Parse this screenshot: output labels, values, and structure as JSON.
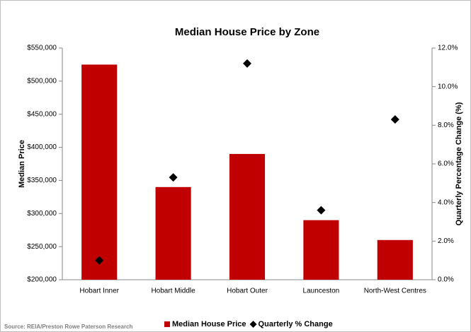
{
  "chart_data": {
    "type": "bar",
    "title": "Median House Price by Zone",
    "categories": [
      "Hobart Inner",
      "Hobart Middle",
      "Hobart Outer",
      "Launceston",
      "North-West Centres"
    ],
    "series": [
      {
        "name": "Median House Price",
        "type": "bar",
        "color": "#c00000",
        "values": [
          525000,
          340000,
          390000,
          290000,
          260000
        ]
      },
      {
        "name": "Quarterly % Change",
        "type": "scatter",
        "marker": "diamond",
        "axis": "y2",
        "color": "#000000",
        "values": [
          1.0,
          5.3,
          11.2,
          3.6,
          8.3
        ]
      }
    ],
    "ylabel": "Median Price",
    "y2label": "Quarterly Percentage Change (%)",
    "ylim": [
      200000,
      550000
    ],
    "yticks": [
      {
        "value": 200000,
        "label": "$200,000"
      },
      {
        "value": 250000,
        "label": "$250,000"
      },
      {
        "value": 300000,
        "label": "$300,000"
      },
      {
        "value": 350000,
        "label": "$350,000"
      },
      {
        "value": 400000,
        "label": "$400,000"
      },
      {
        "value": 450000,
        "label": "$450,000"
      },
      {
        "value": 500000,
        "label": "$500,000"
      },
      {
        "value": 550000,
        "label": "$550,000"
      }
    ],
    "y2lim": [
      0,
      12
    ],
    "y2ticks": [
      {
        "value": 0,
        "label": "0.0%"
      },
      {
        "value": 2,
        "label": "2.0%"
      },
      {
        "value": 4,
        "label": "4.0%"
      },
      {
        "value": 6,
        "label": "6.0%"
      },
      {
        "value": 8,
        "label": "8.0%"
      },
      {
        "value": 10,
        "label": "10.0%"
      },
      {
        "value": 12,
        "label": "12.0%"
      }
    ],
    "grid": false,
    "legend": "bottom",
    "source": "Source: REIA/Preston Rowe Paterson Research"
  }
}
